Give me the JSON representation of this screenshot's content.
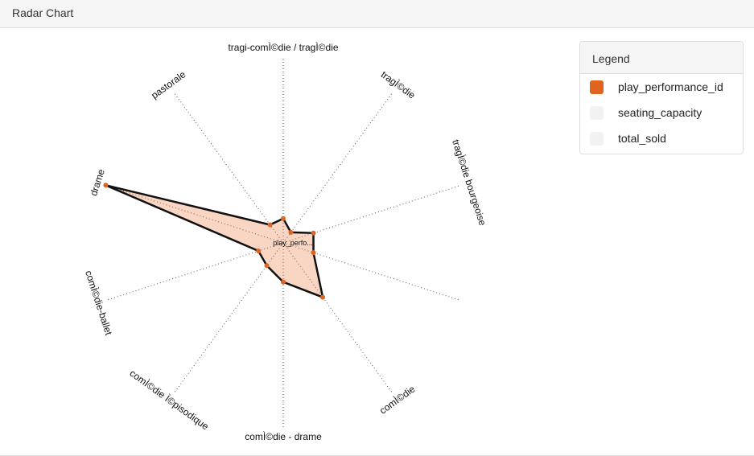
{
  "panel": {
    "title": "Radar Chart"
  },
  "legend": {
    "title": "Legend",
    "items": [
      {
        "label": "play_performance_id",
        "color": "#e0641f",
        "active": true
      },
      {
        "label": "seating_capacity",
        "color": "#f2f2f2",
        "active": false
      },
      {
        "label": "total_sold",
        "color": "#f2f2f2",
        "active": false
      }
    ]
  },
  "chart_data": {
    "type": "radar",
    "center_label": "play_perfo...",
    "axes": [
      "tragi-comÌ©die / tragÌ©die",
      "tragÌ©die",
      "tragÌ©die bourgeoise",
      "",
      "comÌ©die",
      "comÌ©die - drame",
      "comÌ©die Ì©pisodique",
      "comÌ©die-ballet",
      "drame",
      "pastorale"
    ],
    "series": [
      {
        "name": "play_performance_id",
        "color": "#e0641f",
        "values": [
          0.13,
          0.07,
          0.17,
          0.17,
          0.36,
          0.21,
          0.15,
          0.14,
          1.0,
          0.12
        ]
      }
    ],
    "rmax": 1.0
  }
}
